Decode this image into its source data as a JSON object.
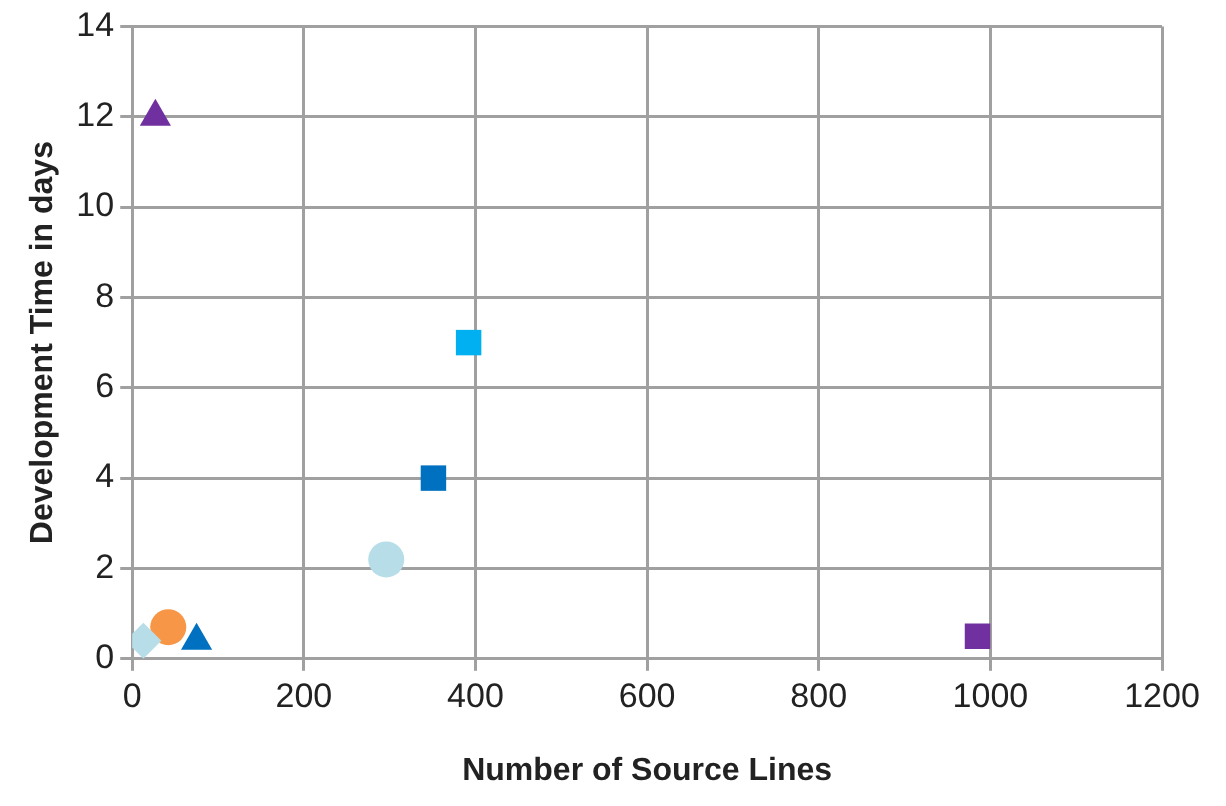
{
  "chart_data": {
    "type": "scatter",
    "xlabel": "Number of Source Lines",
    "ylabel": "Development Time in days",
    "xlim": [
      0,
      1200
    ],
    "xticks": [
      0,
      200,
      400,
      600,
      800,
      1000,
      1200
    ],
    "ylim": [
      0,
      14
    ],
    "yticks": [
      0,
      2,
      4,
      6,
      8,
      10,
      12,
      14
    ],
    "grid": true,
    "legend": false,
    "series": [
      {
        "x": [
          27
        ],
        "values": [
          12
        ],
        "color": "#7030a0",
        "marker": "triangle"
      },
      {
        "x": [
          392
        ],
        "values": [
          7
        ],
        "color": "#00b0f0",
        "marker": "square"
      },
      {
        "x": [
          351
        ],
        "values": [
          4
        ],
        "color": "#0070c0",
        "marker": "square"
      },
      {
        "x": [
          296
        ],
        "values": [
          2.2
        ],
        "color": "#b7dde8",
        "marker": "circle"
      },
      {
        "x": [
          985
        ],
        "values": [
          0.5
        ],
        "color": "#7030a0",
        "marker": "square"
      },
      {
        "x": [
          13
        ],
        "values": [
          0.4
        ],
        "color": "#b7dde8",
        "marker": "diamond"
      },
      {
        "x": [
          42
        ],
        "values": [
          0.7
        ],
        "color": "#f79646",
        "marker": "circle"
      },
      {
        "x": [
          75
        ],
        "values": [
          0.4
        ],
        "color": "#0070c0",
        "marker": "triangle"
      }
    ]
  }
}
